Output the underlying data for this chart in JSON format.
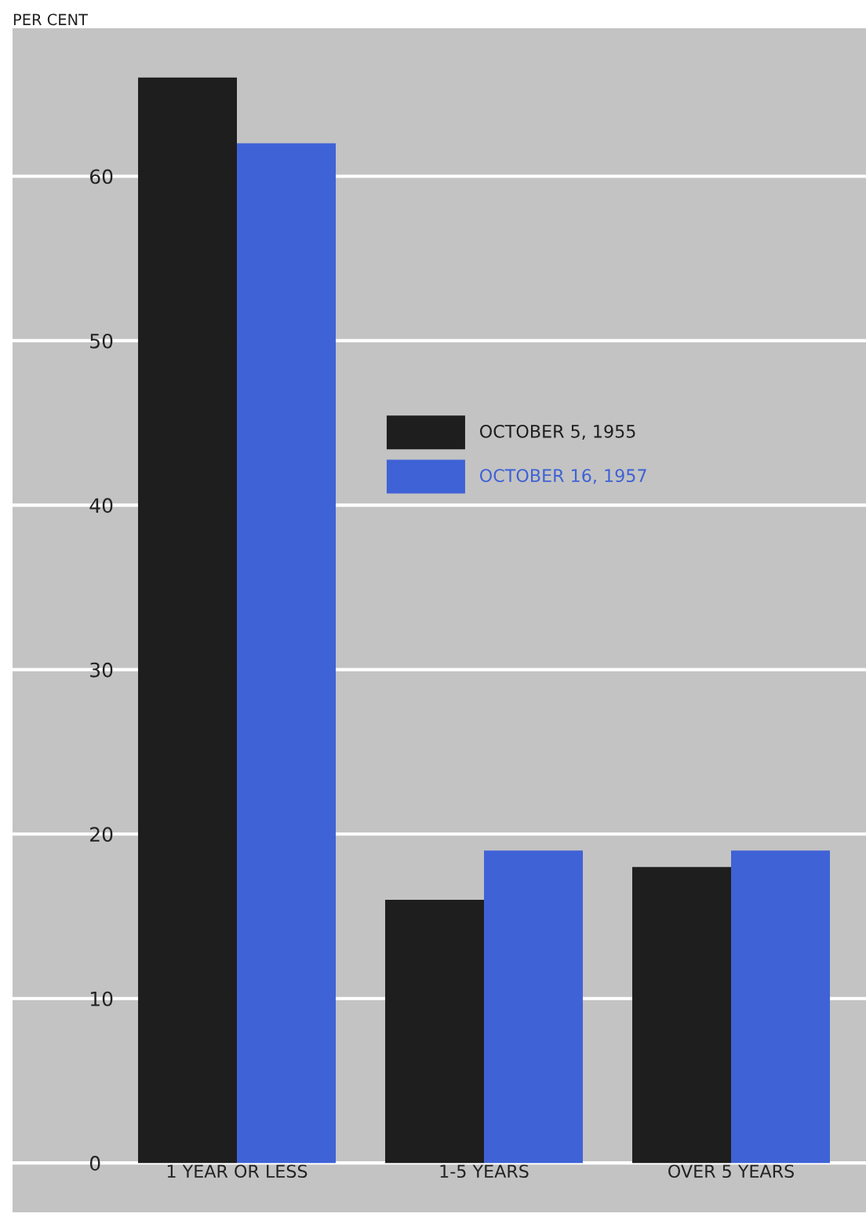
{
  "chart_data": {
    "type": "bar",
    "ylabel": "PER CENT",
    "categories": [
      "1 YEAR OR LESS",
      "1-5 YEARS",
      "OVER 5 YEARS"
    ],
    "series": [
      {
        "name": "OCTOBER 5, 1955",
        "color": "#1e1e1e",
        "values": [
          66,
          16,
          18
        ]
      },
      {
        "name": "OCTOBER 16, 1957",
        "color": "#3f62d6",
        "values": [
          62,
          19,
          19
        ]
      }
    ],
    "ylim": [
      -3,
      69
    ],
    "yticks": [
      0,
      10,
      20,
      30,
      40,
      50,
      60
    ],
    "grid": "y",
    "legend": "center"
  }
}
